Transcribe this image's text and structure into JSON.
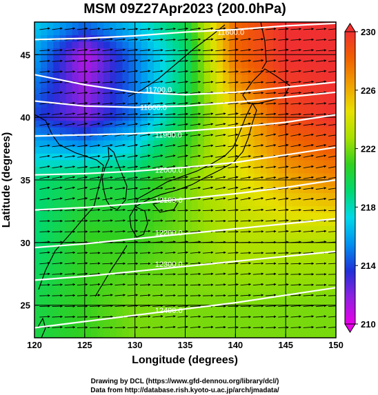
{
  "figure": {
    "title": "MSM 09Z27Apr2023 (200.0hPa)",
    "credit_line1": "Drawing by DCL (https://www.gfd-dennou.org/library/dcl/)",
    "credit_line2": "Data from http://database.rish.kyoto-u.ac.jp/arch/jmadata/"
  },
  "chart_data": {
    "type": "heatmap",
    "title": "MSM 09Z27Apr2023 (200.0hPa)",
    "xlabel": "Longitude (degrees)",
    "ylabel": "Latitude  (degrees)",
    "xlim": [
      120,
      150
    ],
    "ylim": [
      22.4,
      47.6
    ],
    "x_ticks": [
      120,
      125,
      130,
      135,
      140,
      145,
      150
    ],
    "y_ticks": [
      25,
      30,
      35,
      40,
      45
    ],
    "colorbar": {
      "min": 210,
      "max": 230,
      "ticks": [
        210,
        214,
        218,
        222,
        226,
        230
      ],
      "colors": [
        "#e800e8",
        "#9020e0",
        "#2030d8",
        "#0090f0",
        "#00d8e8",
        "#00d870",
        "#30d020",
        "#a8e000",
        "#e8e000",
        "#f0a000",
        "#f06000",
        "#f03030"
      ]
    },
    "temperature_field": {
      "lon": [
        120,
        125,
        130,
        135,
        140,
        145,
        150
      ],
      "lat": [
        47.6,
        45,
        40,
        35,
        30,
        25,
        22.4
      ],
      "values": [
        [
          217,
          215,
          217,
          220,
          228,
          230,
          230
        ],
        [
          216,
          211,
          215,
          219,
          228,
          230,
          230
        ],
        [
          214,
          212,
          215,
          220,
          225,
          229,
          230
        ],
        [
          219,
          220,
          220,
          222,
          224,
          226,
          227
        ],
        [
          219,
          221,
          221,
          222,
          223,
          223,
          223
        ],
        [
          220,
          221,
          222,
          222,
          222,
          222,
          222
        ],
        [
          220,
          221,
          222,
          222,
          222,
          222,
          222
        ]
      ]
    },
    "height_contours": [
      {
        "label": "11600.0",
        "label_lon": 138.2,
        "label_lat": 46.8,
        "lons": [
          120,
          125,
          130,
          135,
          140,
          145,
          150
        ],
        "lats": [
          46.2,
          46.3,
          46.5,
          46.8,
          47.0,
          47.3,
          47.5
        ]
      },
      {
        "label": "11700.0",
        "label_lon": 131.0,
        "label_lat": 42.2,
        "lons": [
          120,
          125,
          130,
          135,
          140,
          145,
          150
        ],
        "lats": [
          43.4,
          42.6,
          42.0,
          41.8,
          42.0,
          42.4,
          42.8
        ]
      },
      {
        "label": "11800.0",
        "label_lon": 130.5,
        "label_lat": 40.8,
        "lons": [
          120,
          125,
          130,
          135,
          140,
          145,
          150
        ],
        "lats": [
          41.3,
          40.9,
          40.8,
          40.9,
          41.2,
          41.6,
          42.0
        ]
      },
      {
        "label": "11900.0",
        "label_lon": 132.0,
        "label_lat": 38.6,
        "lons": [
          120,
          125,
          130,
          135,
          140,
          145,
          150
        ],
        "lats": [
          38.5,
          38.6,
          38.7,
          38.9,
          39.2,
          39.6,
          40.2
        ]
      },
      {
        "label": "12000.0",
        "label_lon": 132.0,
        "label_lat": 35.8,
        "lons": [
          120,
          125,
          130,
          135,
          140,
          145,
          150
        ],
        "lats": [
          35.4,
          35.5,
          35.7,
          36.0,
          36.4,
          37.0,
          37.6
        ]
      },
      {
        "label": "12100.0",
        "label_lon": 132.0,
        "label_lat": 33.4,
        "lons": [
          120,
          125,
          130,
          135,
          140,
          145,
          150
        ],
        "lats": [
          32.6,
          32.8,
          33.1,
          33.5,
          33.9,
          34.4,
          35.0
        ]
      },
      {
        "label": "12200.0",
        "label_lon": 132.0,
        "label_lat": 30.8,
        "lons": [
          120,
          125,
          130,
          135,
          140,
          145,
          150
        ],
        "lats": [
          29.6,
          29.9,
          30.3,
          30.7,
          31.1,
          31.5,
          31.9
        ]
      },
      {
        "label": "12300.0",
        "label_lon": 132.0,
        "label_lat": 28.3,
        "lons": [
          120,
          125,
          130,
          135,
          140,
          145,
          150
        ],
        "lats": [
          27.0,
          27.3,
          27.7,
          28.1,
          28.5,
          28.9,
          29.3
        ]
      },
      {
        "label": "12400.0",
        "label_lon": 132.0,
        "label_lat": 24.6,
        "lons": [
          120,
          125,
          130,
          135,
          140,
          145,
          150
        ],
        "lats": [
          23.2,
          23.7,
          24.2,
          24.7,
          25.2,
          25.8,
          26.4
        ]
      }
    ],
    "grid": true,
    "vectors": "wind"
  }
}
